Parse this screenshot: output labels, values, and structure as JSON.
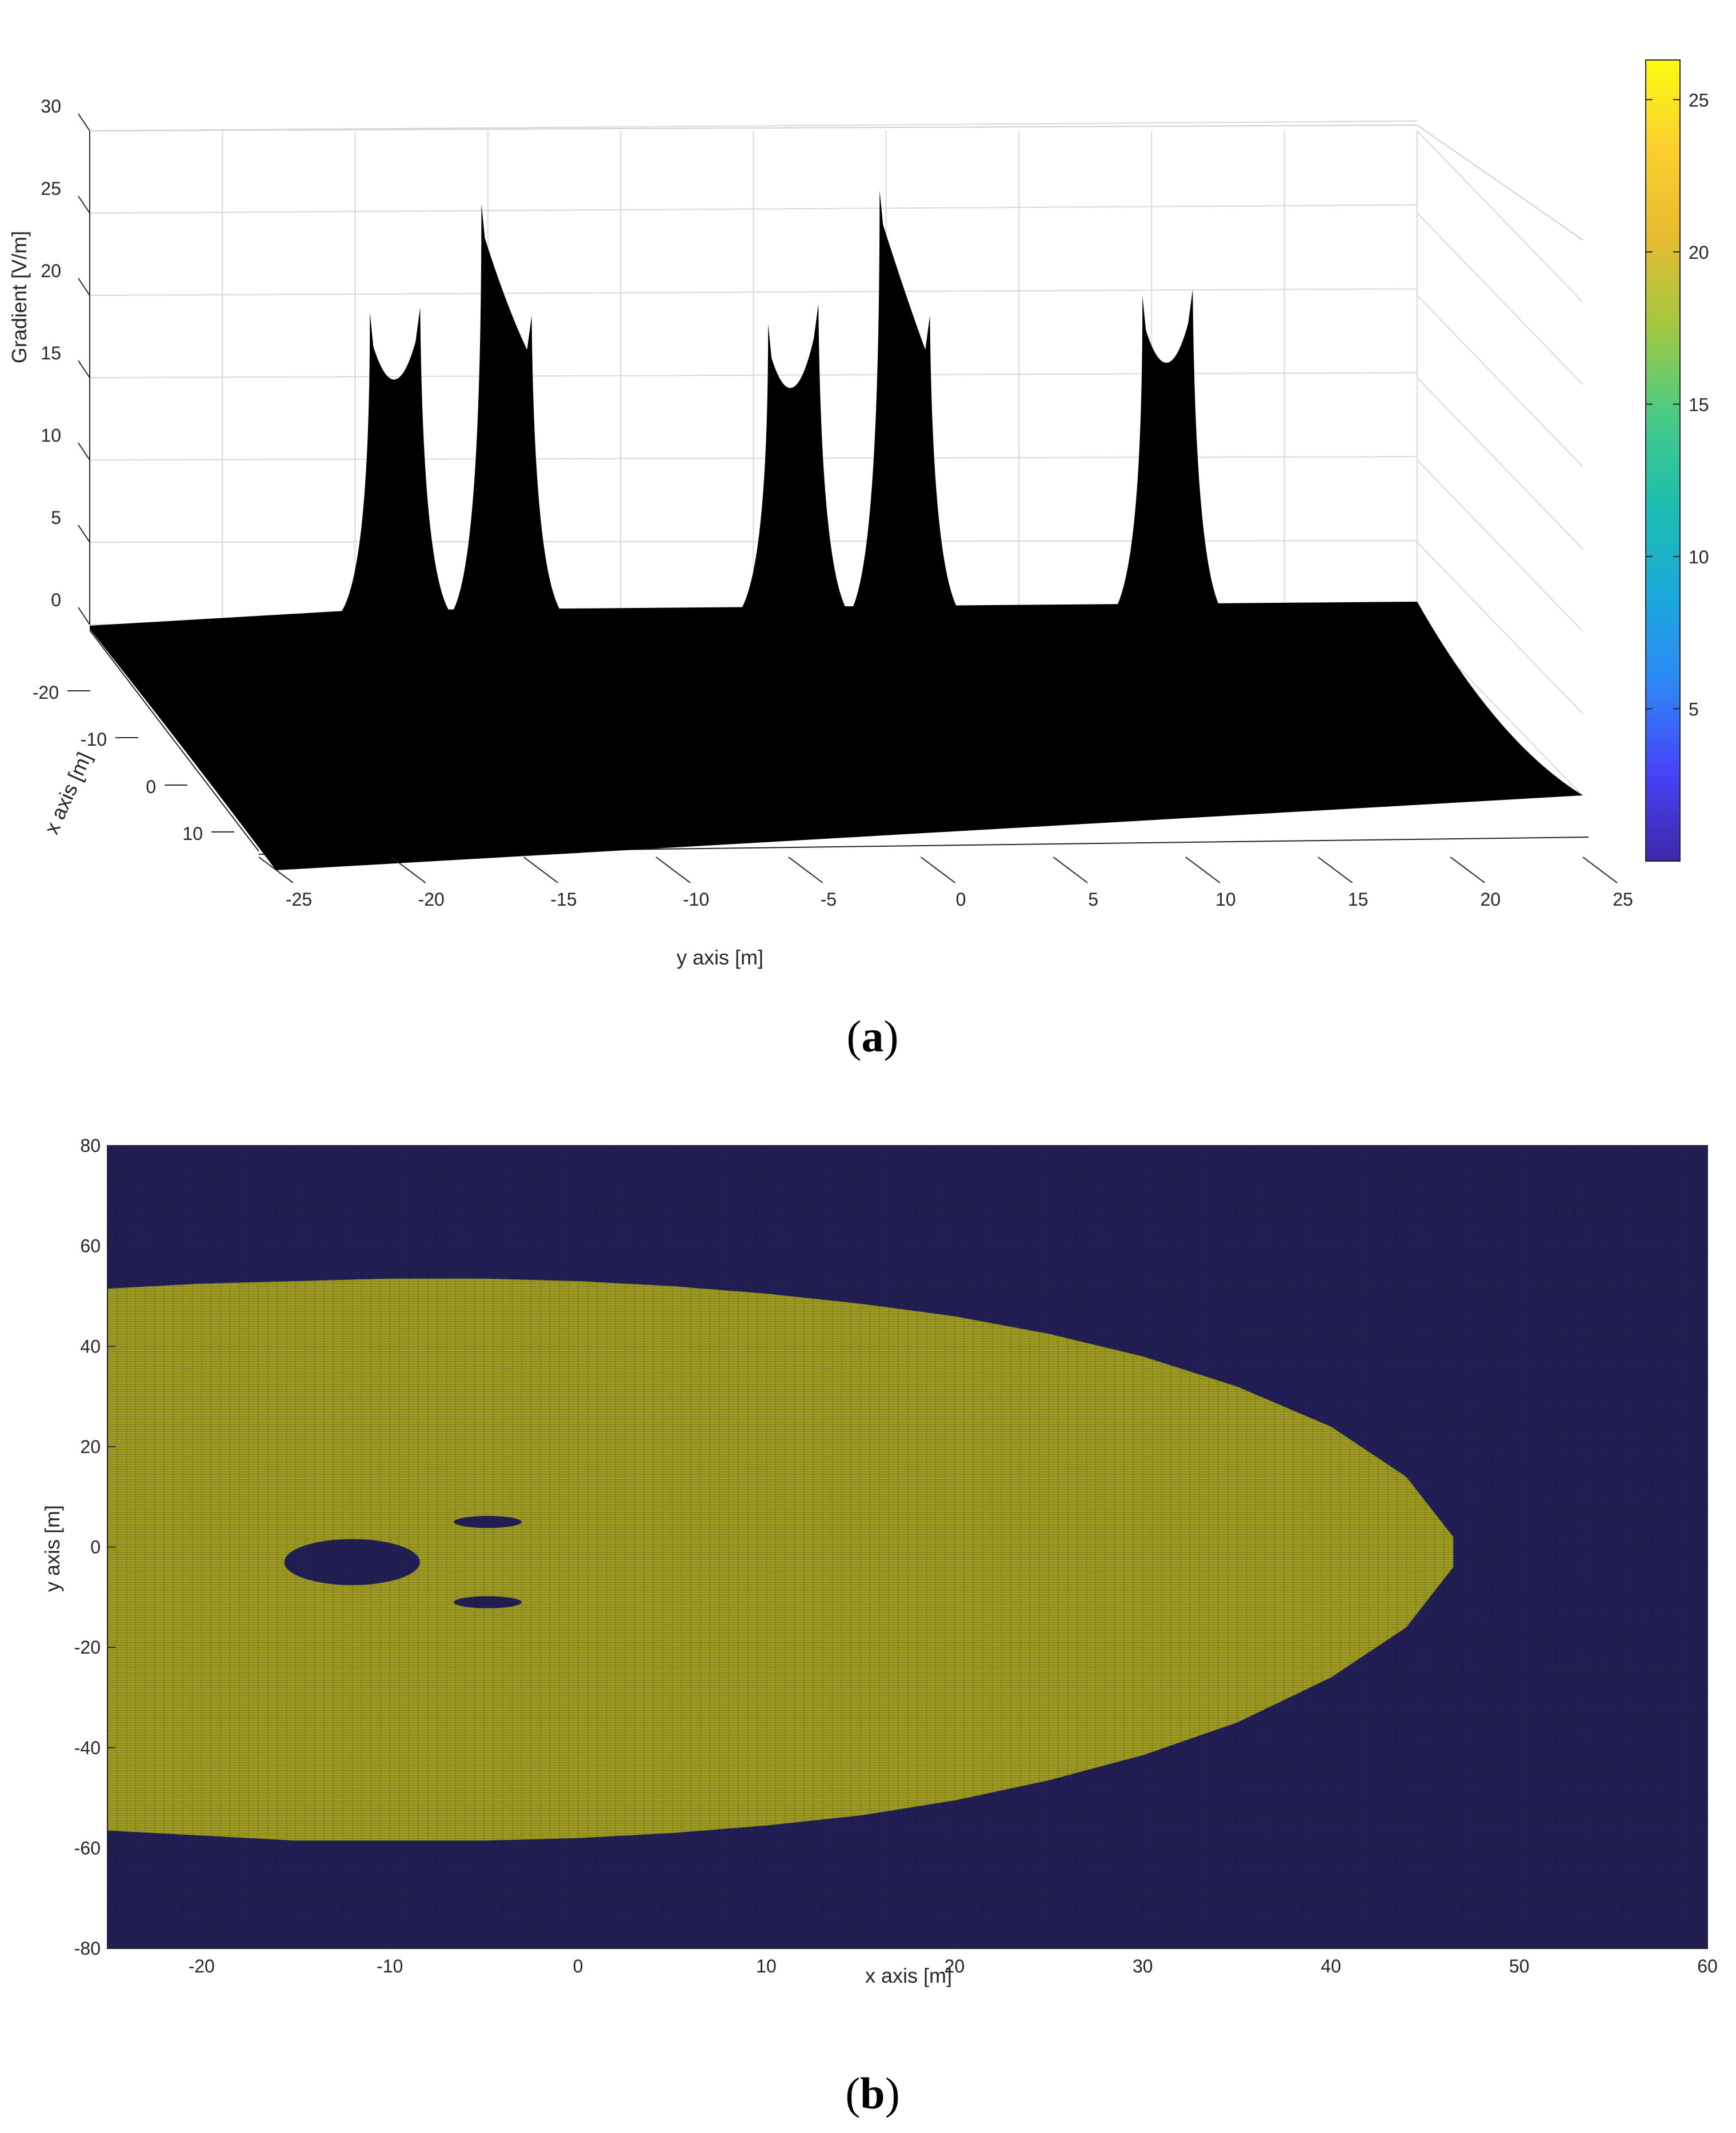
{
  "figure": {
    "panels": [
      {
        "id": "a",
        "caption_open": "(",
        "caption_letter": "a",
        "caption_close": ")"
      },
      {
        "id": "b",
        "caption_open": "(",
        "caption_letter": "b",
        "caption_close": ")"
      }
    ]
  },
  "chart_data": [
    {
      "type": "surface",
      "panel": "a",
      "title": "",
      "xlabel": "x axis [m]",
      "ylabel": "y axis [m]",
      "zlabel": "Gradient [V/m]",
      "x_ticks": [
        "-20",
        "-10",
        "0",
        "10"
      ],
      "y_ticks": [
        "-25",
        "-20",
        "-15",
        "-10",
        "-5",
        "0",
        "5",
        "10",
        "15",
        "20",
        "25"
      ],
      "z_ticks": [
        "0",
        "5",
        "10",
        "15",
        "20",
        "25",
        "30"
      ],
      "x_range": [
        -25,
        15
      ],
      "y_range": [
        -25,
        25
      ],
      "z_range": [
        0,
        30
      ],
      "surface_color": "#000000",
      "grid": true,
      "baseline_levels": {
        "back": 1.3,
        "front": -0.8
      },
      "peaks": [
        {
          "y": -13.5,
          "values": [
            19.5,
            19.8
          ]
        },
        {
          "y": -9.3,
          "values": [
            26.1,
            19.3
          ]
        },
        {
          "y": 1.5,
          "values": [
            18.8,
            20.0
          ]
        },
        {
          "y": 5.7,
          "values": [
            26.9,
            19.3
          ]
        },
        {
          "y": 15.6,
          "values": [
            20.5,
            20.9
          ]
        }
      ],
      "colorbar": {
        "ticks": [
          "5",
          "10",
          "15",
          "20",
          "25"
        ],
        "range": [
          0,
          26.3
        ],
        "colormap": [
          "#3e26a8",
          "#4743f8",
          "#2e87f7",
          "#1ba9da",
          "#1cbdb0",
          "#48cb86",
          "#a1c841",
          "#e6bb30",
          "#fcce2e",
          "#f9fb14"
        ]
      }
    },
    {
      "type": "heatmap",
      "panel": "b",
      "title": "",
      "xlabel": "x axis [m]",
      "ylabel": "y axis [m]",
      "x_ticks": [
        "-20",
        "-10",
        "0",
        "10",
        "20",
        "30",
        "40",
        "50",
        "60"
      ],
      "y_ticks": [
        "80",
        "60",
        "40",
        "20",
        "0",
        "-20",
        "-40",
        "-60",
        "-80"
      ],
      "xlim": [
        -25,
        60
      ],
      "ylim": [
        -80,
        80
      ],
      "grid_step": 0.5,
      "colors": {
        "background": "#221f56",
        "region": "#9f9c23",
        "gridline": "#0a0a0a"
      },
      "region_outline": [
        [
          -25,
          51.5
        ],
        [
          -20,
          52.5
        ],
        [
          -15,
          53.0
        ],
        [
          -10,
          53.5
        ],
        [
          -5,
          53.5
        ],
        [
          0,
          53.0
        ],
        [
          5,
          52.0
        ],
        [
          10,
          50.5
        ],
        [
          15,
          48.5
        ],
        [
          20,
          46.0
        ],
        [
          25,
          42.5
        ],
        [
          30,
          38.0
        ],
        [
          35,
          32.0
        ],
        [
          40,
          24.0
        ],
        [
          44,
          14.0
        ],
        [
          46.5,
          2.0
        ],
        [
          46.5,
          -4.0
        ],
        [
          44,
          -16.0
        ],
        [
          40,
          -26.0
        ],
        [
          35,
          -35.0
        ],
        [
          30,
          -41.5
        ],
        [
          25,
          -46.5
        ],
        [
          20,
          -50.5
        ],
        [
          15,
          -53.5
        ],
        [
          10,
          -55.5
        ],
        [
          5,
          -57.0
        ],
        [
          0,
          -58.0
        ],
        [
          -5,
          -58.5
        ],
        [
          -10,
          -58.5
        ],
        [
          -15,
          -58.5
        ],
        [
          -20,
          -57.5
        ],
        [
          -25,
          -56.5
        ]
      ],
      "holes": [
        {
          "cx": -12,
          "cy": -3,
          "rx": 3.6,
          "ry": 4.6
        },
        {
          "cx": -4.8,
          "cy": 5,
          "rx": 1.8,
          "ry": 1.2
        },
        {
          "cx": -4.8,
          "cy": -11,
          "rx": 1.8,
          "ry": 1.2
        }
      ]
    }
  ]
}
